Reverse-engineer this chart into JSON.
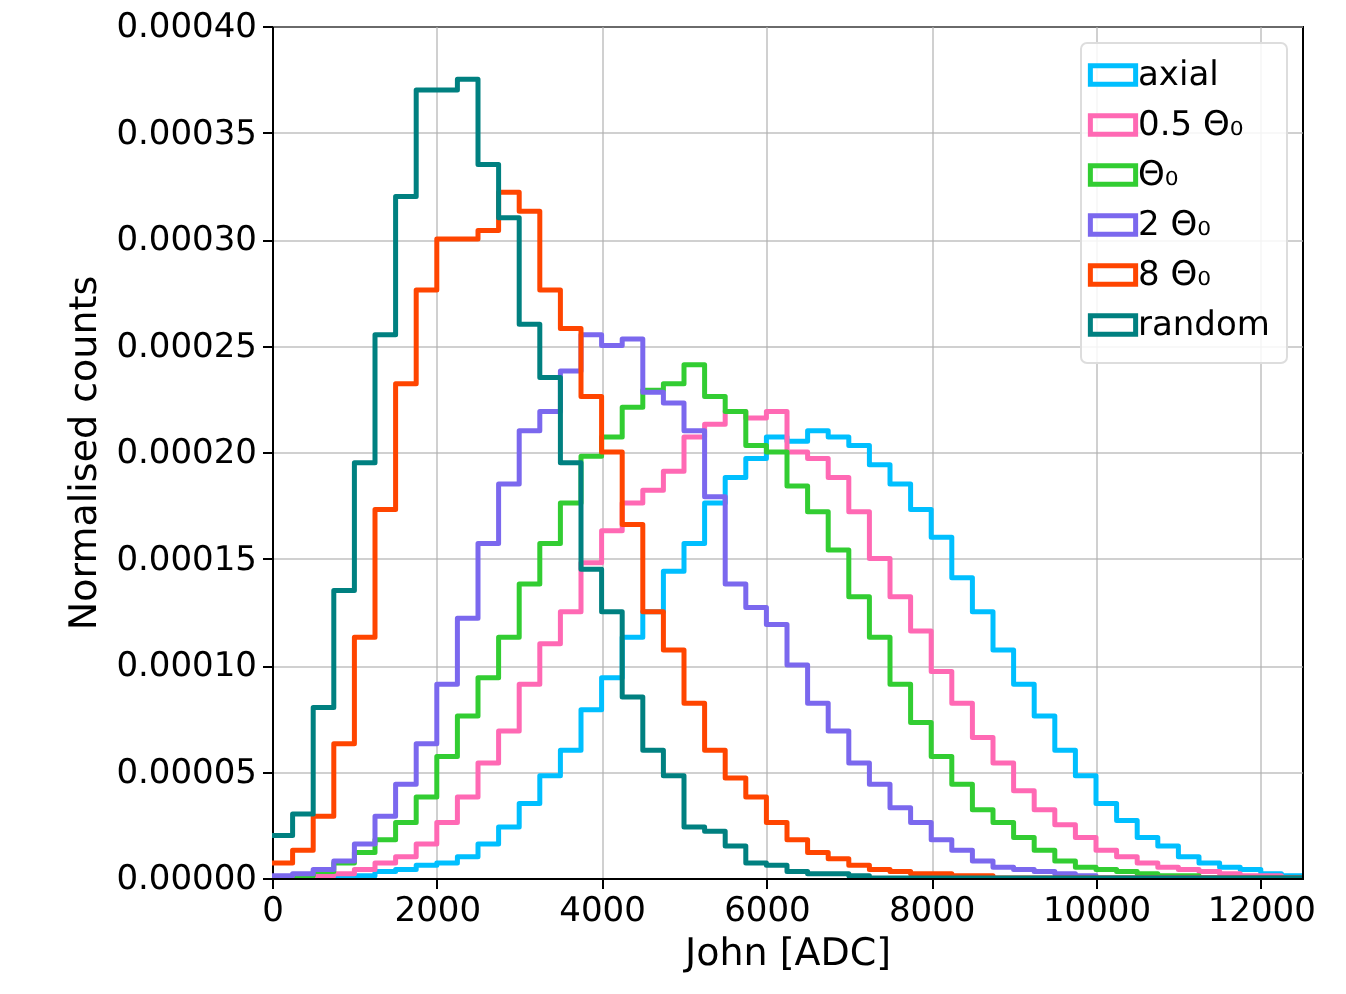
{
  "chart_data": {
    "type": "histogram",
    "xlabel": "John [ADC]",
    "ylabel": "Normalised counts",
    "bins": [
      0,
      250,
      500,
      750,
      1000,
      1250,
      1500,
      1750,
      2000,
      2250,
      2500,
      2750,
      3000,
      3250,
      3500,
      3750,
      4000,
      4250,
      4500,
      4750,
      5000,
      5250,
      5500,
      5750,
      6000,
      6250,
      6500,
      6750,
      7000,
      7250,
      7500,
      7750,
      8000,
      8250,
      8500,
      8750,
      9000,
      9250,
      9500,
      9750,
      10000,
      10250,
      10500,
      10750,
      11000,
      11250,
      11500,
      11750,
      12000,
      12250,
      12500
    ],
    "series": [
      {
        "name": "axial",
        "color": "#00bfff",
        "values": [
          0,
          0,
          0,
          1e-06,
          1e-06,
          3e-06,
          4e-06,
          6e-06,
          7e-06,
          1e-05,
          1.6e-05,
          2.4e-05,
          3.5e-05,
          4.8e-05,
          6e-05,
          7.9e-05,
          9.4e-05,
          0.000113,
          0.000125,
          0.000144,
          0.000157,
          0.000176,
          0.000188,
          0.000197,
          0.000207,
          0.000205,
          0.00021,
          0.000207,
          0.000203,
          0.000194,
          0.000185,
          0.000173,
          0.00016,
          0.000141,
          0.000125,
          0.000107,
          9.1e-05,
          7.6e-05,
          6e-05,
          4.8e-05,
          3.5e-05,
          2.7e-05,
          1.9e-05,
          1.5e-05,
          1e-05,
          7e-06,
          5e-06,
          4e-06,
          2e-06,
          1e-06
        ]
      },
      {
        "name": "0.5 Θ₀",
        "color": "#ff69b4",
        "values": [
          0,
          0,
          1e-06,
          2e-06,
          4e-06,
          7e-06,
          1e-05,
          1.6e-05,
          2.6e-05,
          3.8e-05,
          5.4e-05,
          6.9e-05,
          9.1e-05,
          0.00011,
          0.000125,
          0.000148,
          0.000163,
          0.000176,
          0.000182,
          0.000191,
          0.000207,
          0.000213,
          0.000219,
          0.000216,
          0.000219,
          0.0002,
          0.000197,
          0.000188,
          0.000172,
          0.00015,
          0.000132,
          0.000116,
          9.7e-05,
          8.2e-05,
          6.6e-05,
          5.4e-05,
          4.1e-05,
          3.2e-05,
          2.5e-05,
          1.9e-05,
          1.3e-05,
          1e-05,
          7e-06,
          5e-06,
          4e-06,
          3e-06,
          2e-06,
          1e-06,
          1e-06,
          0
        ]
      },
      {
        "name": "Θ₀",
        "color": "#32cd32",
        "values": [
          0,
          1e-06,
          3e-06,
          7e-06,
          1.2e-05,
          1.8e-05,
          2.6e-05,
          3.8e-05,
          5.7e-05,
          7.6e-05,
          9.4e-05,
          0.000113,
          0.000138,
          0.000157,
          0.000176,
          0.000198,
          0.000207,
          0.000221,
          0.000229,
          0.000232,
          0.000241,
          0.000226,
          0.000219,
          0.000203,
          0.0002,
          0.000184,
          0.000172,
          0.000154,
          0.000132,
          0.000113,
          9.1e-05,
          7.3e-05,
          5.7e-05,
          4.4e-05,
          3.2e-05,
          2.6e-05,
          1.9e-05,
          1.3e-05,
          8e-06,
          5e-06,
          4e-06,
          3e-06,
          2e-06,
          1e-06,
          1e-06,
          0,
          0,
          0,
          0,
          0
        ]
      },
      {
        "name": "2 Θ₀",
        "color": "#7b68ee",
        "values": [
          1e-06,
          2e-06,
          4e-06,
          8e-06,
          1.6e-05,
          2.9e-05,
          4.4e-05,
          6.3e-05,
          9.1e-05,
          0.000122,
          0.000157,
          0.000185,
          0.00021,
          0.000219,
          0.000238,
          0.000255,
          0.00025,
          0.000253,
          0.000228,
          0.000223,
          0.00021,
          0.000179,
          0.000138,
          0.000127,
          0.000119,
          0.0001,
          8.2e-05,
          6.9e-05,
          5.4e-05,
          4.4e-05,
          3.3e-05,
          2.6e-05,
          1.8e-05,
          1.3e-05,
          8e-06,
          5e-06,
          4e-06,
          3e-06,
          2e-06,
          1e-06,
          0,
          0,
          0,
          0,
          0,
          0,
          0,
          0,
          0,
          0
        ]
      },
      {
        "name": "8 Θ₀",
        "color": "#ff4500",
        "values": [
          7e-06,
          1.3e-05,
          2.9e-05,
          6.3e-05,
          0.000113,
          0.000173,
          0.000232,
          0.000276,
          0.0003,
          0.0003,
          0.000304,
          0.000322,
          0.000313,
          0.000276,
          0.000258,
          0.000226,
          0.0002,
          0.000166,
          0.000125,
          0.000107,
          8.2e-05,
          6e-05,
          4.7e-05,
          3.8e-05,
          2.6e-05,
          1.8e-05,
          1.2e-05,
          9e-06,
          6e-06,
          4e-06,
          3e-06,
          2e-06,
          2e-06,
          1e-06,
          1e-06,
          0,
          0,
          0,
          0,
          0,
          0,
          0,
          0,
          0,
          0,
          0,
          0,
          0,
          0,
          0
        ]
      },
      {
        "name": "random",
        "color": "#008080",
        "values": [
          2e-05,
          3e-05,
          8e-05,
          0.000135,
          0.000195,
          0.000255,
          0.00032,
          0.00037,
          0.00037,
          0.000375,
          0.000335,
          0.00031,
          0.00026,
          0.000235,
          0.000195,
          0.000145,
          0.000125,
          8.5e-05,
          6e-05,
          4.8e-05,
          2.4e-05,
          2.2e-05,
          1.5e-05,
          7e-06,
          6e-06,
          3e-06,
          2e-06,
          2e-06,
          1e-06,
          0,
          0,
          0,
          0,
          0,
          0,
          0,
          0,
          0,
          0,
          0,
          0,
          0,
          0,
          0,
          0,
          0,
          0,
          0,
          0,
          0
        ]
      }
    ],
    "xlim": [
      0,
      12500
    ],
    "xticks": [
      0,
      2000,
      4000,
      6000,
      8000,
      10000,
      12000
    ],
    "ylim": [
      0,
      0.0004
    ],
    "yticks": [
      {
        "value": 0,
        "label": "0.00000"
      },
      {
        "value": 5e-05,
        "label": "0.00005"
      },
      {
        "value": 0.0001,
        "label": "0.00010"
      },
      {
        "value": 0.00015,
        "label": "0.00015"
      },
      {
        "value": 0.0002,
        "label": "0.00020"
      },
      {
        "value": 0.00025,
        "label": "0.00025"
      },
      {
        "value": 0.0003,
        "label": "0.00030"
      },
      {
        "value": 0.00035,
        "label": "0.00035"
      },
      {
        "value": 0.0004,
        "label": "0.00040"
      }
    ],
    "grid": true,
    "legend": "top right"
  }
}
